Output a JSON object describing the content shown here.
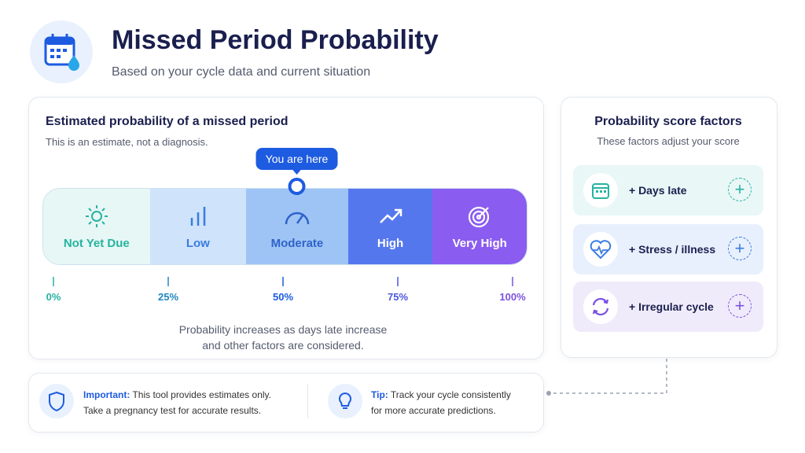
{
  "header": {
    "title": "Missed Period Probability",
    "subtitle": "Based on your cycle data and current situation"
  },
  "probability_card": {
    "title": "Estimated probability of a missed period",
    "note": "This is an estimate, not a diagnosis.",
    "marker_label": "You are here",
    "marker_value": 53,
    "segments": [
      "Not Yet Due",
      "Low",
      "Moderate",
      "High",
      "Very High"
    ],
    "scale": {
      "min": 0,
      "max": 100,
      "ticks": [
        {
          "value": 0,
          "label": "0%"
        },
        {
          "value": 25,
          "label": "25%"
        },
        {
          "value": 50,
          "label": "50%"
        },
        {
          "value": 75,
          "label": "75%"
        },
        {
          "value": 100,
          "label": "100%"
        }
      ]
    },
    "caption": [
      "Probability increases as days late increase",
      "and other factors are considered."
    ]
  },
  "factors": {
    "title": "Probability score factors",
    "subtitle": "These factors adjust your score",
    "items": [
      "+ Days late",
      "+ Stress / illness",
      "+ Irregular cycle"
    ]
  },
  "notes": {
    "important": {
      "label": "Important:",
      "text": "This tool provides estimates only.",
      "line2": "Take a pregnancy test for accurate results."
    },
    "tip": {
      "label": "Tip:",
      "text": "Track your cycle consistently",
      "line2": "for more accurate predictions."
    }
  }
}
